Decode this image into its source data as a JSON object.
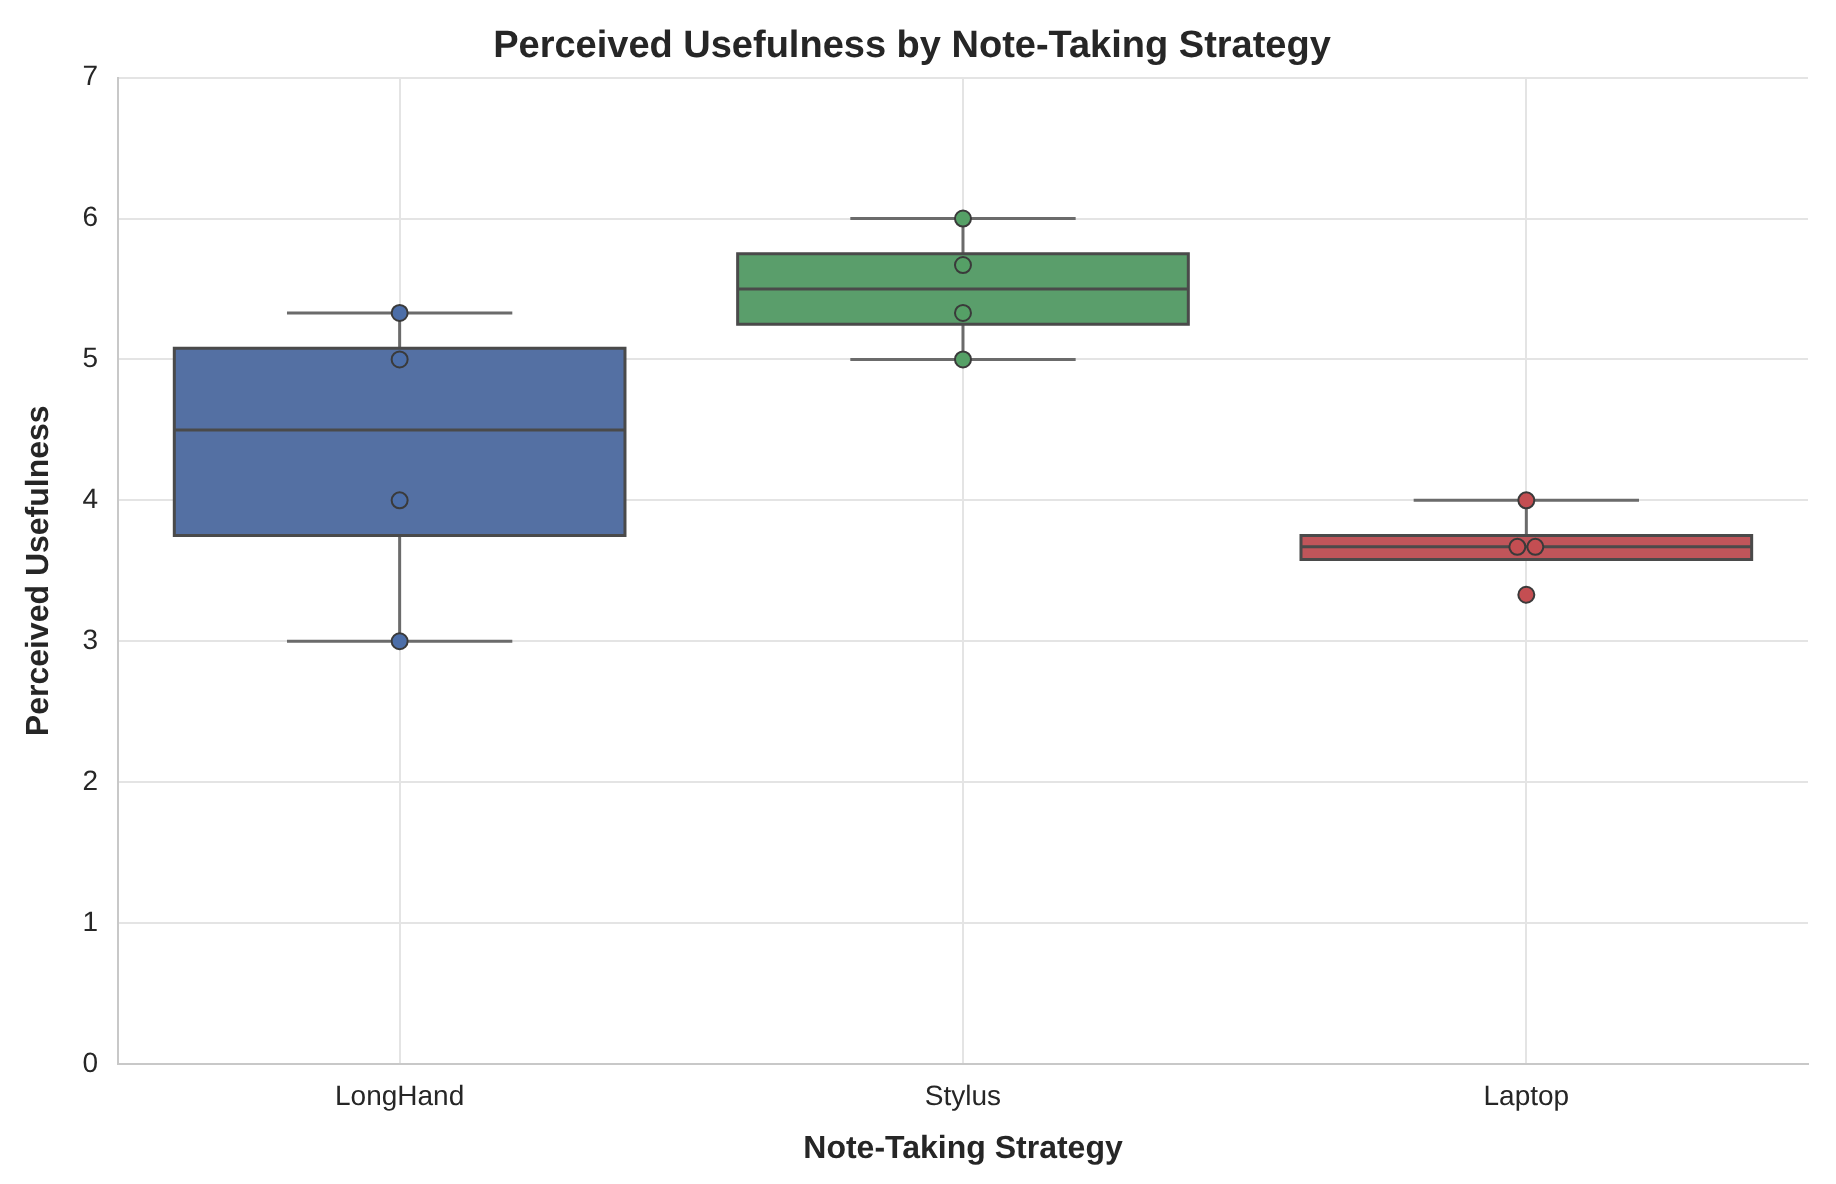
{
  "chart_data": {
    "type": "box",
    "title": "Perceived Usefulness by Note-Taking Strategy",
    "xlabel": "Note-Taking Strategy",
    "ylabel": "Perceived Usefulness",
    "categories": [
      "LongHand",
      "Stylus",
      "Laptop"
    ],
    "colors": [
      "#5470a3",
      "#5a9e6b",
      "#c0555a"
    ],
    "boxes": [
      {
        "low": 3,
        "q1": 3.75,
        "median": 4.5,
        "q3": 5.08,
        "high": 5.33
      },
      {
        "low": 5,
        "q1": 5.25,
        "median": 5.5,
        "q3": 5.75,
        "high": 6
      },
      {
        "low": 3.58,
        "q1": 3.58,
        "median": 3.67,
        "q3": 3.75,
        "high": 4
      }
    ],
    "series": [
      {
        "type": "scatter",
        "x": [
          "LongHand",
          "LongHand",
          "LongHand",
          "LongHand",
          "Stylus",
          "Stylus",
          "Stylus",
          "Stylus",
          "Laptop",
          "Laptop",
          "Laptop",
          "Laptop"
        ],
        "values": [
          3,
          4,
          5,
          5.33,
          5,
          5.33,
          5.67,
          6,
          4,
          3.67,
          3.67,
          3.33
        ],
        "colors": [
          "#4c6ea8",
          "#4c6ea8",
          "#4c6ea8",
          "#4c6ea8",
          "#55a066",
          "#55a066",
          "#55a066",
          "#55a066",
          "#c44e52",
          "#c44e52",
          "#c44e52",
          "#c44e52"
        ],
        "marker": "circle"
      }
    ],
    "ylim": [
      0,
      7
    ],
    "yticks": [
      0,
      1,
      2,
      3,
      4,
      5,
      6,
      7
    ],
    "grid": true,
    "legend": false
  }
}
